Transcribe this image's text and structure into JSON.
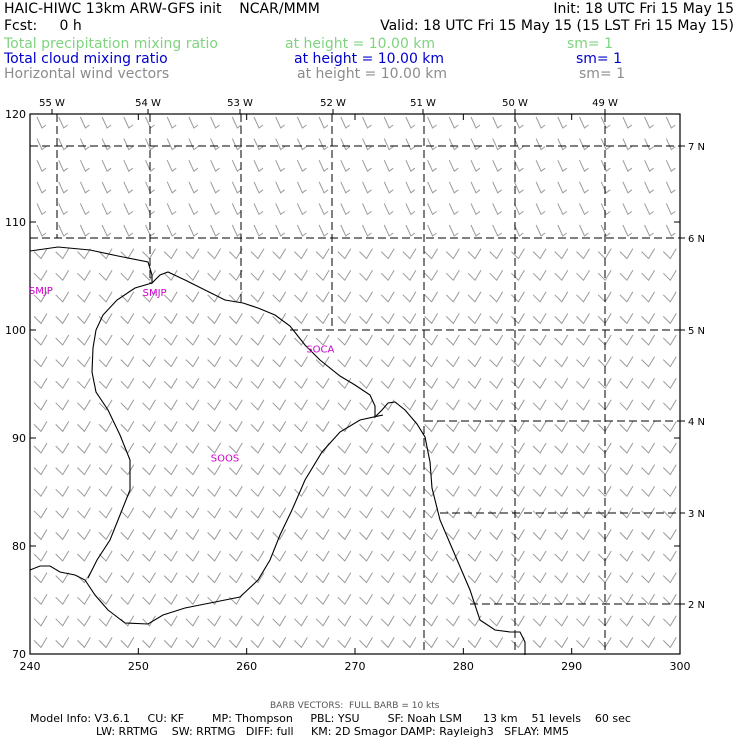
{
  "header": {
    "line1_left": "HAIC-HIWC 13km ARW-GFS init    NCAR/MMM",
    "line1_right": "Init: 18 UTC Fri 15 May 15",
    "line2_left": "Fcst:     0 h",
    "line2_right": "Valid: 18 UTC Fri 15 May 15 (15 LST Fri 15 May 15)",
    "fields": [
      {
        "name": "Total precipitation mixing ratio",
        "height": "at height = 10.00 km",
        "sm": "sm= 1",
        "color": "#7fd37f"
      },
      {
        "name": "Total cloud mixing ratio",
        "height": "at height = 10.00 km",
        "sm": "sm= 1",
        "color": "#0000cc"
      },
      {
        "name": "Horizontal wind vectors",
        "height": "at height = 10.00 km",
        "sm": "sm= 1",
        "color": "#8c8c8c"
      }
    ]
  },
  "map": {
    "x_axis": {
      "min": 240,
      "max": 300,
      "ticks": [
        240,
        250,
        260,
        270,
        280,
        290,
        300
      ]
    },
    "y_axis": {
      "min": 70,
      "max": 120,
      "ticks": [
        70,
        80,
        90,
        100,
        110,
        120
      ]
    },
    "lon_labels": [
      "55 W",
      "54 W",
      "53 W",
      "52 W",
      "51 W",
      "50 W",
      "49 W"
    ],
    "lon_label_x": [
      52,
      148,
      240,
      333,
      423,
      515,
      605
    ],
    "lat_labels": [
      "7 N",
      "6 N",
      "5 N",
      "4 N",
      "3 N",
      "2 N"
    ],
    "lat_label_y": [
      146,
      238,
      330,
      421,
      513,
      604
    ],
    "region_labels": [
      {
        "text": "SMJP",
        "x": 251.5,
        "y": 103.5
      },
      {
        "text": "SOCA",
        "x": 266.8,
        "y": 98.3
      },
      {
        "text": "SOOS",
        "x": 258.0,
        "y": 88.2
      },
      {
        "text": "SMJP",
        "x": 241.0,
        "y": 103.7
      }
    ],
    "region_color": "#cc00cc"
  },
  "footer": {
    "barb_note": "BARB VECTORS:  FULL BARB = 10 kts",
    "line1": "Model Info: V3.6.1     CU: KF        MP: Thompson     PBL: YSU        SF: Noah LSM      13 km    51 levels    60 sec",
    "line2": "LW: RRTMG    SW: RRTMG   DIFF: full     KM: 2D Smagor DAMP: Rayleigh3   SFLAY: MM5"
  }
}
